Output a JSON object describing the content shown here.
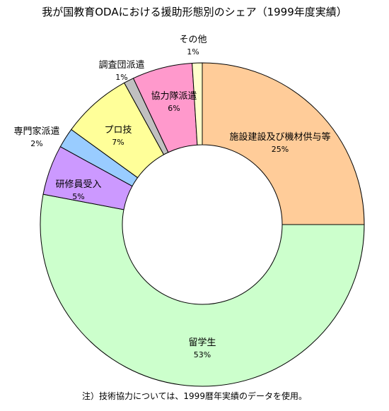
{
  "chart_data": {
    "type": "pie",
    "variant": "donut",
    "title": "我が国教育ODAにおける援助形態別のシェア（1999年度実績）",
    "note": "注）技術協力については、1999暦年実績のデータを使用。",
    "slices": [
      {
        "label": "施設建設及び機材供与等",
        "value": 25,
        "value_label": "25%",
        "color": "#FFCC99"
      },
      {
        "label": "留学生",
        "value": 53,
        "value_label": "53%",
        "color": "#CCFFCC"
      },
      {
        "label": "研修員受入",
        "value": 5,
        "value_label": "5%",
        "color": "#CC99FF"
      },
      {
        "label": "専門家派遣",
        "value": 2,
        "value_label": "2%",
        "color": "#99CCFF"
      },
      {
        "label": "プロ技",
        "value": 7,
        "value_label": "7%",
        "color": "#FFFF99"
      },
      {
        "label": "調査団派遣",
        "value": 1,
        "value_label": "1%",
        "color": "#C0C0C0"
      },
      {
        "label": "協力隊派遣",
        "value": 6,
        "value_label": "6%",
        "color": "#FF99CC"
      },
      {
        "label": "その他",
        "value": 1,
        "value_label": "1%",
        "color": "#FFFFCC"
      }
    ],
    "legend": "none"
  }
}
